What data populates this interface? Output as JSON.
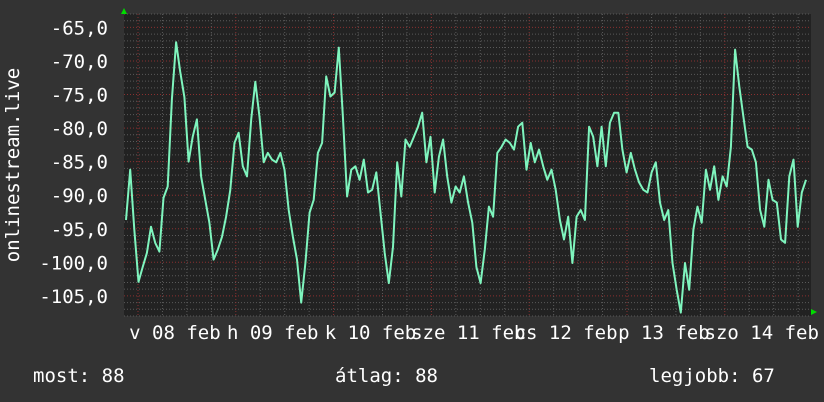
{
  "chart_data": {
    "type": "line",
    "title": "",
    "ylabel": "onlinestream.live",
    "xlabel": "",
    "ylim": [
      -108,
      -63
    ],
    "y_ticks": [
      "-65,0",
      "-70,0",
      "-75,0",
      "-80,0",
      "-85,0",
      "-90,0",
      "-95,0",
      "-100,0",
      "-105,0"
    ],
    "y_tick_values": [
      -65,
      -70,
      -75,
      -80,
      -85,
      -90,
      -95,
      -100,
      -105
    ],
    "x_ticks": [
      "v 08 feb",
      "h 09 feb",
      "k 10 feb",
      "sze 11 feb",
      "cs 12 feb",
      "p 13 feb",
      "szo 14 feb"
    ],
    "grid": true,
    "colors": {
      "background": "#333333",
      "plot": "#222222",
      "line": "#7ff5be",
      "major_grid": "#8a3030",
      "minor_grid": "#5a5a5a",
      "axis_arrow": "#00dd00"
    },
    "series": [
      {
        "values": [
          -93.7,
          -86.2,
          -95.1,
          -102.9,
          -100.7,
          -98.6,
          -94.7,
          -97.1,
          -98.4,
          -90.4,
          -88.7,
          -75.7,
          -67.2,
          -71.6,
          -75.4,
          -85,
          -81.3,
          -78.7,
          -87.2,
          -90.7,
          -94.1,
          -99.6,
          -98.1,
          -96.2,
          -93.2,
          -89.2,
          -82.2,
          -80.7,
          -85.7,
          -87.2,
          -78.7,
          -73.1,
          -78.3,
          -85.1,
          -83.7,
          -84.7,
          -85.1,
          -83.7,
          -86.2,
          -92.2,
          -96.2,
          -99.6,
          -106,
          -100.1,
          -92.6,
          -90.7,
          -83.7,
          -82.2,
          -72.3,
          -75.3,
          -74.7,
          -68,
          -78.3,
          -90.2,
          -86.2,
          -85.7,
          -87.7,
          -84.7,
          -89.6,
          -89.2,
          -86.6,
          -92.6,
          -98.6,
          -103.1,
          -97.7,
          -85.1,
          -90.2,
          -81.7,
          -82.8,
          -81.3,
          -79.8,
          -77.7,
          -85.1,
          -81.3,
          -89.6,
          -84.3,
          -81.7,
          -87.2,
          -91.1,
          -88.7,
          -89.6,
          -87.2,
          -91.1,
          -94.1,
          -100.7,
          -103.1,
          -98.1,
          -91.7,
          -93.2,
          -83.7,
          -82.8,
          -81.7,
          -82.2,
          -83.2,
          -79.8,
          -79.2,
          -86.2,
          -82.2,
          -85.1,
          -83.2,
          -85.7,
          -87.7,
          -86.2,
          -89.2,
          -93.7,
          -96.6,
          -93.2,
          -100.1,
          -93.2,
          -92.2,
          -93.7,
          -79.8,
          -81.3,
          -85.7,
          -79.8,
          -85.7,
          -79.2,
          -77.7,
          -77.7,
          -83.2,
          -86.6,
          -83.7,
          -86.2,
          -88.1,
          -89.2,
          -89.6,
          -86.6,
          -85.1,
          -91.1,
          -93.7,
          -92.2,
          -100.1,
          -104.1,
          -107.5,
          -100.1,
          -104.1,
          -95.1,
          -91.7,
          -94.1,
          -86.2,
          -89.2,
          -85.7,
          -90.7,
          -87.2,
          -88.7,
          -82.8,
          -68.3,
          -73.8,
          -78.3,
          -82.8,
          -83.2,
          -85.1,
          -92.2,
          -94.7,
          -87.7,
          -90.7,
          -91.1,
          -96.6,
          -97.1,
          -87.2,
          -84.7,
          -94.7,
          -89.6,
          -87.7
        ]
      }
    ]
  },
  "legend": {
    "current": "most: 88",
    "average": "átlag: 88",
    "best": "legjobb: 67"
  }
}
